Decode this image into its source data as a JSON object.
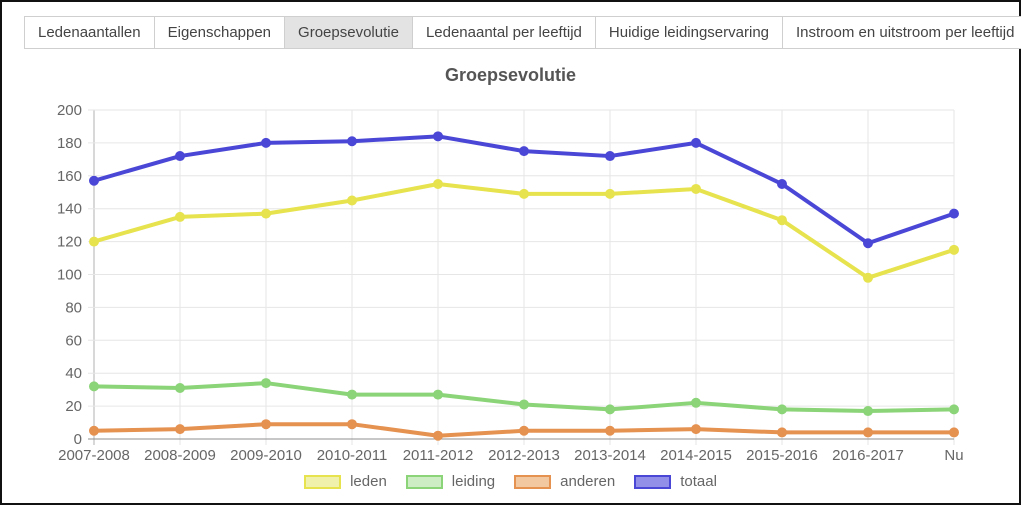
{
  "tabs": {
    "items": [
      {
        "label": "Ledenaantallen",
        "active": false
      },
      {
        "label": "Eigenschappen",
        "active": false
      },
      {
        "label": "Groepsevolutie",
        "active": true
      },
      {
        "label": "Ledenaantal per leeftijd",
        "active": false
      },
      {
        "label": "Huidige leidingservaring",
        "active": false
      },
      {
        "label": "Instroom en uitstroom per leeftijd",
        "active": false
      }
    ],
    "active_bg": "#e3e3e3"
  },
  "chart_data": {
    "type": "line",
    "title": "Groepsevolutie",
    "categories": [
      "2007-2008",
      "2008-2009",
      "2009-2010",
      "2010-2011",
      "2011-2012",
      "2012-2013",
      "2013-2014",
      "2014-2015",
      "2015-2016",
      "2016-2017",
      "Nu"
    ],
    "series": [
      {
        "name": "leden",
        "color": "#e6e34e",
        "fill": "#f0f2ab",
        "values": [
          120,
          135,
          137,
          145,
          155,
          149,
          149,
          152,
          133,
          98,
          115
        ]
      },
      {
        "name": "leiding",
        "color": "#8bd478",
        "fill": "#cdeec4",
        "values": [
          32,
          31,
          34,
          27,
          27,
          21,
          18,
          22,
          18,
          17,
          18
        ]
      },
      {
        "name": "anderen",
        "color": "#e59150",
        "fill": "#f2c8a0",
        "values": [
          5,
          6,
          9,
          9,
          2,
          5,
          5,
          6,
          4,
          4,
          4
        ]
      },
      {
        "name": "totaal",
        "color": "#4b47d6",
        "fill": "#928fe8",
        "values": [
          157,
          172,
          180,
          181,
          184,
          175,
          172,
          180,
          155,
          119,
          137
        ]
      }
    ],
    "xlabel": "",
    "ylabel": "",
    "ylim": [
      0,
      200
    ],
    "ytick_step": 20,
    "grid": true,
    "legend_position": "bottom",
    "axis_text_color": "#666666",
    "grid_color": "#e6e6e6",
    "zero_line_color": "#8f8f8f",
    "first_vertical_line_color": "#b2b2b2"
  }
}
